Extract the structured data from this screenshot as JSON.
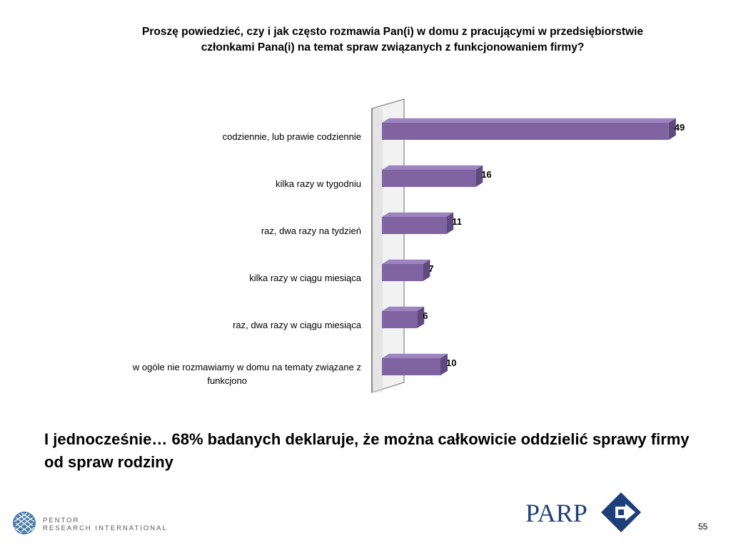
{
  "slide": {
    "headline": "I jednocześnie… 68% badanych deklaruje, że można całkowicie oddzielić sprawy firmy od spraw rodziny",
    "page_number": "55"
  },
  "logos": {
    "pentor_line1": "PENTOR",
    "pentor_line2": "RESEARCH INTERNATIONAL",
    "parp": "PARP"
  },
  "colors": {
    "bar_face": "#8064a2",
    "bar_top": "#9d84bf",
    "bar_side": "#5e4a7f",
    "parp_blue": "#1e3f7a"
  },
  "chart_data": {
    "type": "bar",
    "orientation": "horizontal",
    "style": "3d",
    "title": "Proszę powiedzieć, czy i jak często rozmawia Pan(i) w domu z pracującymi w przedsiębiorstwie członkami Pana(i) na temat spraw związanych z funkcjonowaniem firmy?",
    "categories": [
      "codziennie, lub prawie codziennie",
      "kilka razy w tygodniu",
      "raz, dwa razy na tydzień",
      "kilka razy w ciągu miesiąca",
      "raz, dwa razy w ciągu miesiąca",
      "w ogóle nie rozmawiamy w domu na tematy związane z funkcjono"
    ],
    "values": [
      49,
      16,
      11,
      7,
      6,
      10
    ],
    "xlim": [
      0,
      50
    ],
    "grid": false,
    "legend": "none"
  }
}
